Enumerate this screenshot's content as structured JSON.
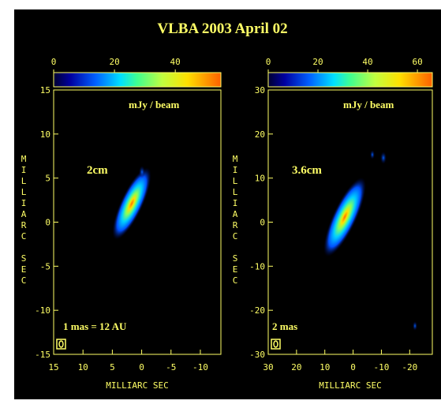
{
  "title": "VLBA 2003 April 02",
  "chart_data": [
    {
      "type": "image",
      "label": "2cm",
      "scale_note": "1 mas = 12 AU",
      "colorbar_label": "mJy / beam",
      "clim": [
        0,
        55
      ],
      "cticks": [
        0,
        20,
        40
      ],
      "xlim": [
        15,
        -13.5
      ],
      "xticks": [
        15,
        10,
        5,
        0,
        -5,
        -10
      ],
      "xlabel": "MILLIARC SEC",
      "ylim": [
        -15,
        15
      ],
      "yticks": [
        -15,
        -10,
        -5,
        0,
        5,
        10,
        15
      ],
      "ylabel": "MILLIARC SEC"
    },
    {
      "type": "image",
      "label": "3.6cm",
      "scale_note": "2 mas",
      "colorbar_label": "mJy / beam",
      "clim": [
        0,
        66
      ],
      "cticks": [
        0,
        20,
        40,
        60
      ],
      "xlim": [
        30,
        -28
      ],
      "xticks": [
        30,
        20,
        10,
        0,
        -10,
        -20
      ],
      "xlabel": "MILLIARC SEC",
      "ylim": [
        -30,
        30
      ],
      "yticks": [
        -30,
        -20,
        -10,
        0,
        10,
        20,
        30
      ],
      "ylabel": "MILLIARC SEC"
    }
  ]
}
